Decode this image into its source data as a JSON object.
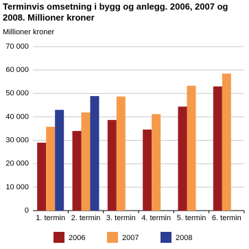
{
  "chart_data": {
    "type": "bar",
    "title": "Terminvis omsetning i bygg og anlegg. 2006, 2007 og 2008. Millioner kroner",
    "y_label": "Millioner kroner",
    "categories": [
      "1. termin",
      "2. termin",
      "3. termin",
      "4. termin",
      "5. termin",
      "6. termin"
    ],
    "series": [
      {
        "name": "2006",
        "color": "#9b1c1f",
        "values": [
          29000,
          34000,
          38700,
          34600,
          44400,
          53000
        ]
      },
      {
        "name": "2007",
        "color": "#f59a4a",
        "values": [
          35800,
          41900,
          48700,
          41200,
          53300,
          58500
        ]
      },
      {
        "name": "2008",
        "color": "#2c3e94",
        "values": [
          43000,
          48900,
          null,
          null,
          null,
          null
        ]
      }
    ],
    "ylim": [
      0,
      70000
    ],
    "yticks": [
      0,
      {
        "value": 10000,
        "label": "10 000"
      },
      {
        "value": 20000,
        "label": "20 000"
      },
      {
        "value": 30000,
        "label": "30 000"
      },
      {
        "value": 40000,
        "label": "40 000"
      },
      {
        "value": 50000,
        "label": "50 000"
      },
      {
        "value": 60000,
        "label": "60 000"
      },
      {
        "value": 70000,
        "label": "70 000"
      }
    ],
    "grid": true
  }
}
